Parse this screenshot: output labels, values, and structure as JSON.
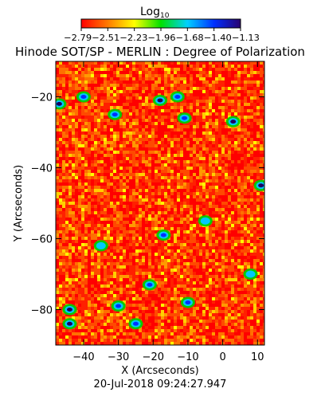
{
  "colorbar": {
    "label_main": "Log",
    "label_sub": "10",
    "ticks": [
      "-2.79",
      "-2.51",
      "-2.23",
      "-1.96",
      "-1.68",
      "-1.40",
      "-1.13"
    ],
    "colors": [
      "#ff0000",
      "#ff7a00",
      "#ffff00",
      "#00e000",
      "#00d0ff",
      "#0030ff",
      "#280070"
    ]
  },
  "chart_data": {
    "type": "heatmap",
    "title": "Hinode SOT/SP - MERLIN : Degree of Polarization",
    "xlabel": "X (Arcseconds)",
    "ylabel": "Y (Arcseconds)",
    "xlim": [
      -48,
      12
    ],
    "ylim": [
      -90,
      -10
    ],
    "xticks": [
      -40,
      -30,
      -20,
      -10,
      0,
      10
    ],
    "yticks": [
      -20,
      -40,
      -60,
      -80
    ],
    "xtick_labels": [
      "−40",
      "−30",
      "−20",
      "−10",
      "0",
      "10"
    ],
    "ytick_labels": [
      "−20",
      "−40",
      "−60",
      "−80"
    ],
    "colorscale": "log10",
    "value_range": [
      -2.79,
      -1.13
    ],
    "hot_spots": [
      {
        "x": -47,
        "y": -22,
        "v": -1.25
      },
      {
        "x": -40,
        "y": -20,
        "v": -1.4
      },
      {
        "x": -31,
        "y": -25,
        "v": -1.55
      },
      {
        "x": -18,
        "y": -21,
        "v": -1.2
      },
      {
        "x": -13,
        "y": -20,
        "v": -1.45
      },
      {
        "x": -11,
        "y": -26,
        "v": -1.6
      },
      {
        "x": 3,
        "y": -27,
        "v": -1.35
      },
      {
        "x": 11,
        "y": -45,
        "v": -1.2
      },
      {
        "x": -17,
        "y": -59,
        "v": -1.55
      },
      {
        "x": -21,
        "y": -73,
        "v": -1.7
      },
      {
        "x": -44,
        "y": -80,
        "v": -1.3
      },
      {
        "x": -44,
        "y": -84,
        "v": -1.35
      },
      {
        "x": -30,
        "y": -79,
        "v": -1.5
      },
      {
        "x": -10,
        "y": -78,
        "v": -1.45
      },
      {
        "x": -25,
        "y": -84,
        "v": -1.6
      },
      {
        "x": -5,
        "y": -55,
        "v": -1.75
      },
      {
        "x": -35,
        "y": -62,
        "v": -1.85
      },
      {
        "x": 8,
        "y": -70,
        "v": -1.8
      }
    ]
  },
  "timestamp": "20-Jul-2018 09:24:27.947"
}
